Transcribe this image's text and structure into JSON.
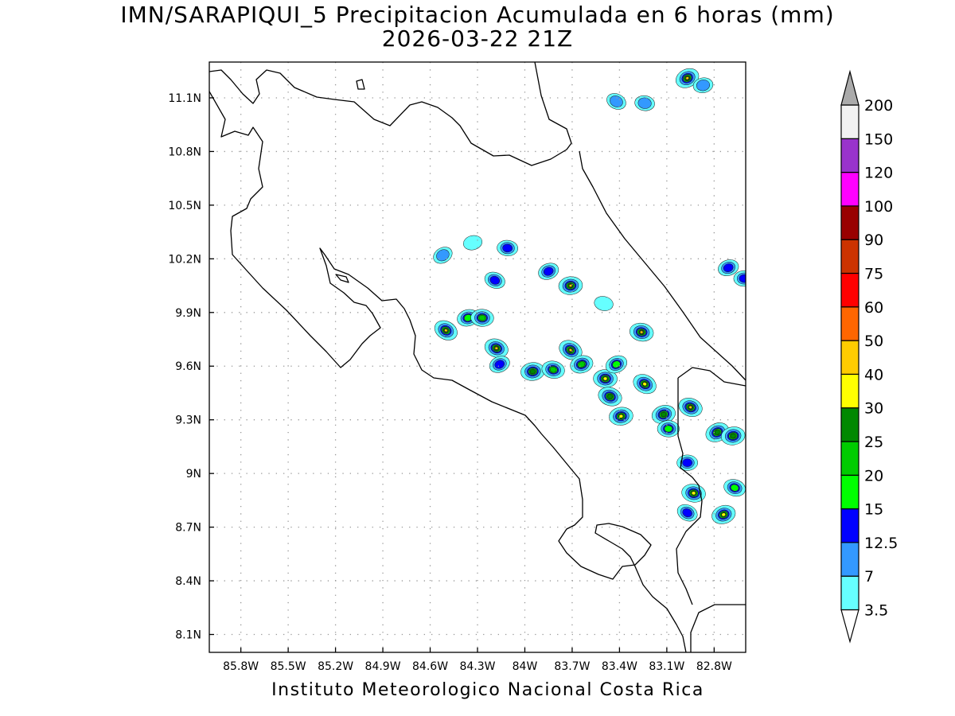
{
  "title": "IMN/SARAPIQUI_5 Precipitacion Acumulada en 6 horas (mm)",
  "subtitle": "2026-03-22 21Z",
  "credit": "Instituto Meteorologico Nacional Costa Rica",
  "map": {
    "lon_range": [
      -86.0,
      -82.6
    ],
    "lat_range": [
      8.0,
      11.3
    ],
    "lon_ticks": [
      {
        "value": -85.8,
        "label": "85.8W"
      },
      {
        "value": -85.5,
        "label": "85.5W"
      },
      {
        "value": -85.2,
        "label": "85.2W"
      },
      {
        "value": -84.9,
        "label": "84.9W"
      },
      {
        "value": -84.6,
        "label": "84.6W"
      },
      {
        "value": -84.3,
        "label": "84.3W"
      },
      {
        "value": -84.0,
        "label": "84W"
      },
      {
        "value": -83.7,
        "label": "83.7W"
      },
      {
        "value": -83.4,
        "label": "83.4W"
      },
      {
        "value": -83.1,
        "label": "83.1W"
      },
      {
        "value": -82.8,
        "label": "82.8W"
      }
    ],
    "lat_ticks": [
      {
        "value": 11.1,
        "label": "11.1N"
      },
      {
        "value": 10.8,
        "label": "10.8N"
      },
      {
        "value": 10.5,
        "label": "10.5N"
      },
      {
        "value": 10.2,
        "label": "10.2N"
      },
      {
        "value": 9.9,
        "label": "9.9N"
      },
      {
        "value": 9.6,
        "label": "9.6N"
      },
      {
        "value": 9.3,
        "label": "9.3N"
      },
      {
        "value": 9.0,
        "label": "9N"
      },
      {
        "value": 8.7,
        "label": "8.7N"
      },
      {
        "value": 8.4,
        "label": "8.4N"
      },
      {
        "value": 8.1,
        "label": "8.1N"
      }
    ],
    "grid": true,
    "gridline_style": "dotted"
  },
  "colorbar": {
    "position": "right",
    "labels": [
      "3.5",
      "7",
      "12.5",
      "15",
      "20",
      "25",
      "30",
      "40",
      "50",
      "60",
      "75",
      "90",
      "100",
      "120",
      "150",
      "200"
    ],
    "colors": [
      "#ffffff",
      "#66ffff",
      "#3399ff",
      "#0000ff",
      "#00ff00",
      "#00cc00",
      "#008800",
      "#ffff00",
      "#ffcc00",
      "#ff6600",
      "#ff0000",
      "#cc3300",
      "#990000",
      "#ff00ff",
      "#9933cc",
      "#f2f2f2",
      "#aaaaaa"
    ]
  },
  "precip_cells": [
    {
      "lon": -84.52,
      "lat": 10.22,
      "peak": 7
    },
    {
      "lon": -84.33,
      "lat": 10.29,
      "peak": 3.5
    },
    {
      "lon": -84.11,
      "lat": 10.26,
      "peak": 12.5
    },
    {
      "lon": -84.19,
      "lat": 10.08,
      "peak": 12.5
    },
    {
      "lon": -83.85,
      "lat": 10.13,
      "peak": 12.5
    },
    {
      "lon": -83.71,
      "lat": 10.05,
      "peak": 40
    },
    {
      "lon": -83.5,
      "lat": 9.95,
      "peak": 3.5
    },
    {
      "lon": -84.5,
      "lat": 9.8,
      "peak": 40
    },
    {
      "lon": -84.36,
      "lat": 9.87,
      "peak": 15
    },
    {
      "lon": -84.27,
      "lat": 9.87,
      "peak": 20
    },
    {
      "lon": -84.18,
      "lat": 9.7,
      "peak": 40
    },
    {
      "lon": -84.16,
      "lat": 9.61,
      "peak": 12.5
    },
    {
      "lon": -83.95,
      "lat": 9.57,
      "peak": 25
    },
    {
      "lon": -83.82,
      "lat": 9.58,
      "peak": 20
    },
    {
      "lon": -83.71,
      "lat": 9.69,
      "peak": 40
    },
    {
      "lon": -83.64,
      "lat": 9.61,
      "peak": 20
    },
    {
      "lon": -83.49,
      "lat": 9.53,
      "peak": 30
    },
    {
      "lon": -83.46,
      "lat": 9.43,
      "peak": 25
    },
    {
      "lon": -83.42,
      "lat": 9.61,
      "peak": 15
    },
    {
      "lon": -83.39,
      "lat": 9.32,
      "peak": 30
    },
    {
      "lon": -83.26,
      "lat": 9.79,
      "peak": 40
    },
    {
      "lon": -83.24,
      "lat": 9.5,
      "peak": 30
    },
    {
      "lon": -83.12,
      "lat": 9.33,
      "peak": 25
    },
    {
      "lon": -83.09,
      "lat": 9.25,
      "peak": 15
    },
    {
      "lon": -82.95,
      "lat": 9.37,
      "peak": 40
    },
    {
      "lon": -82.78,
      "lat": 9.23,
      "peak": 25
    },
    {
      "lon": -82.68,
      "lat": 9.21,
      "peak": 25
    },
    {
      "lon": -82.93,
      "lat": 8.89,
      "peak": 30
    },
    {
      "lon": -82.97,
      "lat": 8.78,
      "peak": 12.5
    },
    {
      "lon": -82.74,
      "lat": 8.77,
      "peak": 30
    },
    {
      "lon": -82.97,
      "lat": 9.06,
      "peak": 12.5
    },
    {
      "lon": -82.67,
      "lat": 8.92,
      "peak": 15
    },
    {
      "lon": -82.97,
      "lat": 11.21,
      "peak": 40
    },
    {
      "lon": -82.87,
      "lat": 11.17,
      "peak": 7
    },
    {
      "lon": -83.24,
      "lat": 11.07,
      "peak": 7
    },
    {
      "lon": -83.42,
      "lat": 11.08,
      "peak": 7
    },
    {
      "lon": -82.71,
      "lat": 10.15,
      "peak": 12.5
    },
    {
      "lon": -82.61,
      "lat": 10.09,
      "peak": 12.5
    }
  ]
}
